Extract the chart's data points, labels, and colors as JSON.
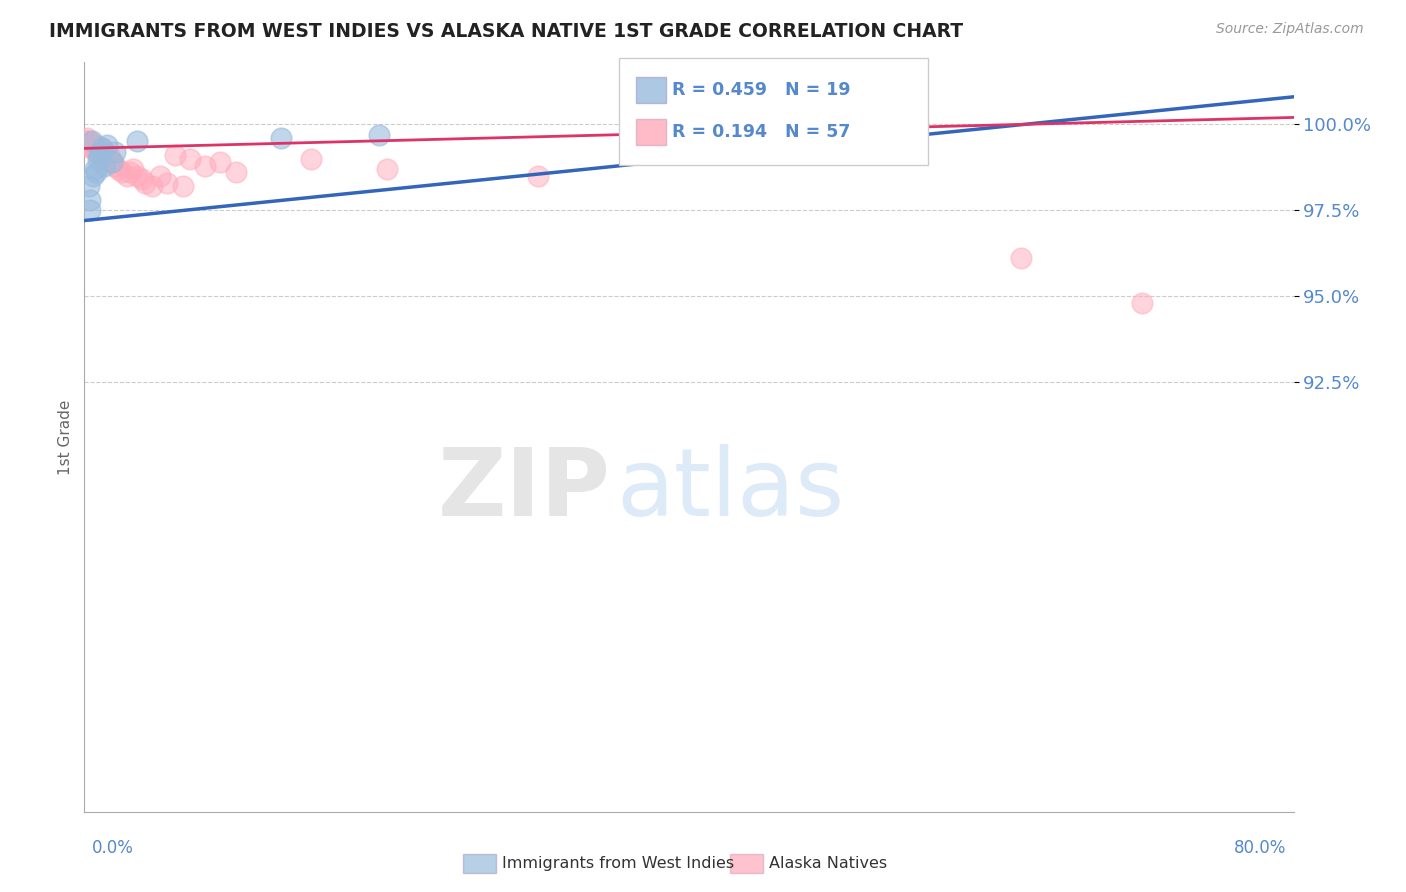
{
  "title": "IMMIGRANTS FROM WEST INDIES VS ALASKA NATIVE 1ST GRADE CORRELATION CHART",
  "source_text": "Source: ZipAtlas.com",
  "ylabel": "1st Grade",
  "x_label_bottom_left": "0.0%",
  "x_label_bottom_right": "80.0%",
  "xlim": [
    0.0,
    80.0
  ],
  "ylim": [
    80.0,
    101.8
  ],
  "yticks": [
    92.5,
    95.0,
    97.5,
    100.0
  ],
  "ytick_labels": [
    "92.5%",
    "95.0%",
    "97.5%",
    "100.0%"
  ],
  "r_blue": 0.459,
  "n_blue": 19,
  "r_pink": 0.194,
  "n_pink": 57,
  "legend_label_blue": "Immigrants from West Indies",
  "legend_label_pink": "Alaska Natives",
  "blue_color": "#99bbdd",
  "pink_color": "#ffaabb",
  "trendline_blue_color": "#3366bb",
  "trendline_pink_color": "#dd3366",
  "watermark_zip": "ZIP",
  "watermark_atlas": "atlas",
  "title_color": "#222222",
  "axis_label_color": "#666666",
  "tick_color": "#5588cc",
  "grid_color": "#cccccc",
  "blue_scatter_x": [
    0.3,
    0.5,
    0.6,
    0.7,
    0.8,
    0.9,
    1.0,
    1.1,
    1.2,
    1.3,
    1.5,
    1.8,
    2.0,
    3.5,
    13.0,
    19.5,
    0.4,
    0.35,
    40.0
  ],
  "blue_scatter_y": [
    98.2,
    99.5,
    98.5,
    98.7,
    98.6,
    99.0,
    99.1,
    99.2,
    99.3,
    98.8,
    99.4,
    98.9,
    99.2,
    99.5,
    99.6,
    99.7,
    97.8,
    97.5,
    100.3
  ],
  "pink_scatter_x": [
    0.1,
    0.15,
    0.2,
    0.25,
    0.3,
    0.35,
    0.4,
    0.45,
    0.5,
    0.55,
    0.6,
    0.65,
    0.7,
    0.75,
    0.8,
    0.85,
    0.9,
    0.95,
    1.0,
    1.05,
    1.1,
    1.15,
    1.2,
    1.25,
    1.3,
    1.35,
    1.4,
    1.5,
    1.6,
    1.7,
    1.8,
    1.9,
    2.0,
    2.2,
    2.5,
    2.8,
    3.0,
    3.2,
    3.5,
    3.8,
    4.0,
    4.5,
    5.0,
    5.5,
    6.0,
    6.5,
    7.0,
    8.0,
    9.0,
    10.0,
    15.0,
    20.0,
    30.0,
    45.0,
    55.0,
    62.0,
    70.0
  ],
  "pink_scatter_y": [
    99.5,
    99.5,
    99.6,
    99.4,
    99.5,
    99.4,
    99.4,
    99.3,
    99.4,
    99.3,
    99.4,
    99.3,
    99.3,
    99.4,
    99.3,
    99.2,
    99.3,
    99.2,
    99.3,
    99.2,
    99.3,
    99.2,
    99.3,
    99.2,
    99.1,
    99.2,
    99.1,
    99.0,
    99.1,
    99.0,
    98.9,
    98.9,
    98.8,
    98.7,
    98.6,
    98.5,
    98.6,
    98.7,
    98.5,
    98.4,
    98.3,
    98.2,
    98.5,
    98.3,
    99.1,
    98.2,
    99.0,
    98.8,
    98.9,
    98.6,
    99.0,
    98.7,
    98.5,
    100.2,
    99.8,
    96.1,
    94.8
  ],
  "trendline_blue_x0": 0.0,
  "trendline_blue_y0": 97.2,
  "trendline_blue_x1": 80.0,
  "trendline_blue_y1": 100.8,
  "trendline_pink_x0": 0.0,
  "trendline_pink_y0": 99.3,
  "trendline_pink_x1": 80.0,
  "trendline_pink_y1": 100.2
}
